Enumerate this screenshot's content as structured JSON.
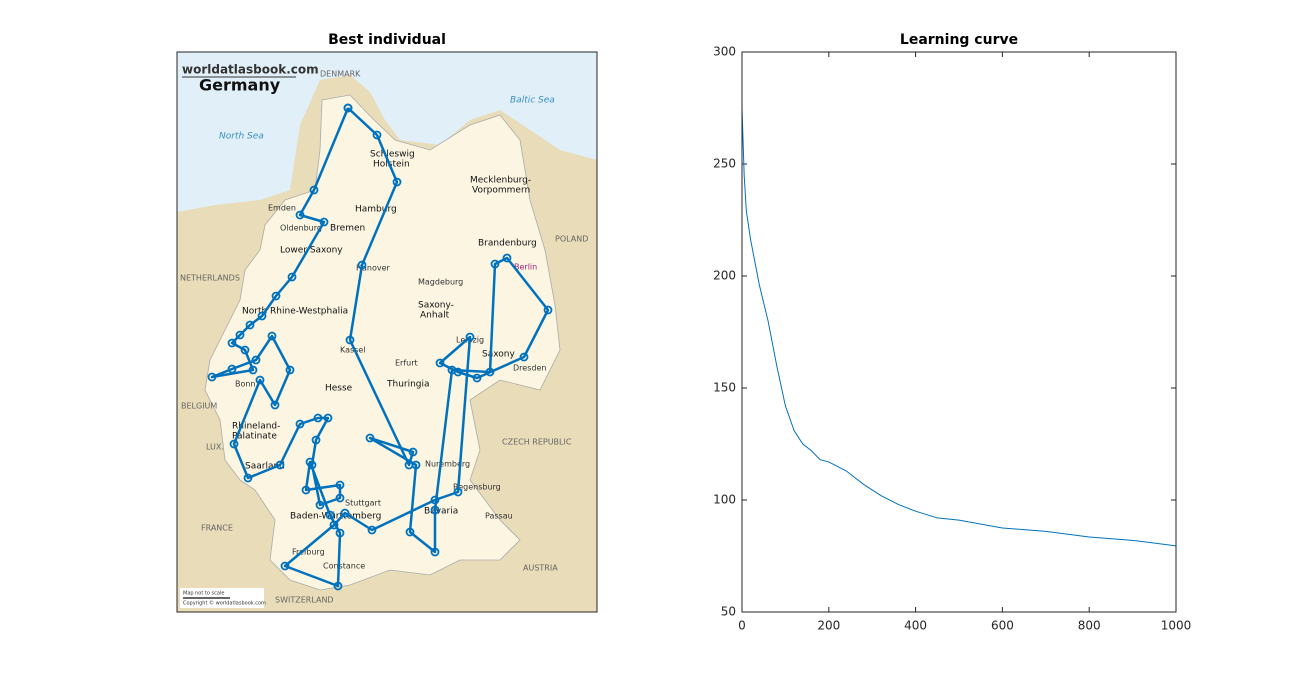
{
  "chart_data": [
    {
      "type": "route",
      "title": "Best individual",
      "x": [
        171,
        137,
        123,
        147,
        115,
        99,
        85,
        73,
        63,
        55,
        68,
        76,
        35,
        55,
        79,
        95,
        113,
        98,
        83,
        57,
        71,
        103,
        123,
        141,
        151,
        139,
        135,
        143,
        163,
        163,
        129,
        133,
        153,
        163,
        161,
        108,
        157,
        168,
        195,
        258,
        281,
        293,
        263,
        281,
        300,
        347,
        371,
        330,
        318,
        313,
        275,
        258,
        258,
        233,
        239,
        193,
        236,
        232,
        173,
        185,
        220,
        200,
        171
      ],
      "y": [
        56,
        138,
        163,
        170,
        225,
        244,
        264,
        273,
        283,
        291,
        298,
        318,
        325,
        317,
        308,
        284,
        318,
        353,
        328,
        392,
        426,
        413,
        372,
        366,
        366,
        388,
        413,
        453,
        446,
        433,
        438,
        410,
        463,
        481,
        534,
        514,
        473,
        461,
        478,
        448,
        440,
        285,
        311,
        320,
        326,
        305,
        258,
        206,
        212,
        320,
        318,
        458,
        500,
        480,
        413,
        386,
        400,
        413,
        288,
        213,
        130,
        83,
        56
      ],
      "xlim": [
        0,
        420
      ],
      "ylim": [
        0,
        560
      ],
      "y_direction": "reverse",
      "color": "#0072bd",
      "map_labels": [
        "worldatlasbook.com",
        "Germany",
        "DENMARK",
        "Baltic Sea",
        "North Sea",
        "Schleswig",
        "Holstein",
        "Mecklenburg-",
        "Vorpommern",
        "Hamburg",
        "Bremen",
        "Lower Saxony",
        "Brandenburg",
        "POLAND",
        "Berlin",
        "NETHERLANDS",
        "North Rhine-Westphalia",
        "Saxony-",
        "Anhalt",
        "Saxony",
        "Thuringia",
        "Hesse",
        "BELGIUM",
        "Rhineland-",
        "Palatinate",
        "LUX.",
        "Saarland",
        "CZECH REPUBLIC",
        "Bavaria",
        "Baden-Württemberg",
        "FRANCE",
        "AUSTRIA",
        "SWITZERLAND",
        "Emden",
        "Oldenburg",
        "Hanover",
        "Magdeburg",
        "Leipzig",
        "Dresden",
        "Kassel",
        "Erfurt",
        "Bonn",
        "Stuttgart",
        "Nuremberg",
        "Regensburg",
        "Passau",
        "Freiburg",
        "Constance",
        "Map not to scale",
        "Copyright © worldatlasbook.com"
      ]
    },
    {
      "type": "line",
      "title": "Learning curve",
      "x": [
        0,
        5,
        10,
        20,
        40,
        60,
        80,
        100,
        120,
        140,
        160,
        180,
        200,
        240,
        280,
        320,
        360,
        400,
        450,
        500,
        600,
        700,
        800,
        900,
        1000
      ],
      "values": [
        275,
        245,
        229,
        216,
        196,
        180,
        160,
        142,
        131,
        125,
        122,
        118,
        117,
        113,
        107,
        102,
        98,
        95,
        92,
        91,
        87.5,
        86,
        83.5,
        82,
        79.5
      ],
      "color": "#0072bd",
      "xlim": [
        0,
        1000
      ],
      "ylim": [
        50,
        300
      ],
      "xticks": [
        0,
        200,
        400,
        600,
        800,
        1000
      ],
      "yticks": [
        50,
        100,
        150,
        200,
        250,
        300
      ]
    }
  ]
}
